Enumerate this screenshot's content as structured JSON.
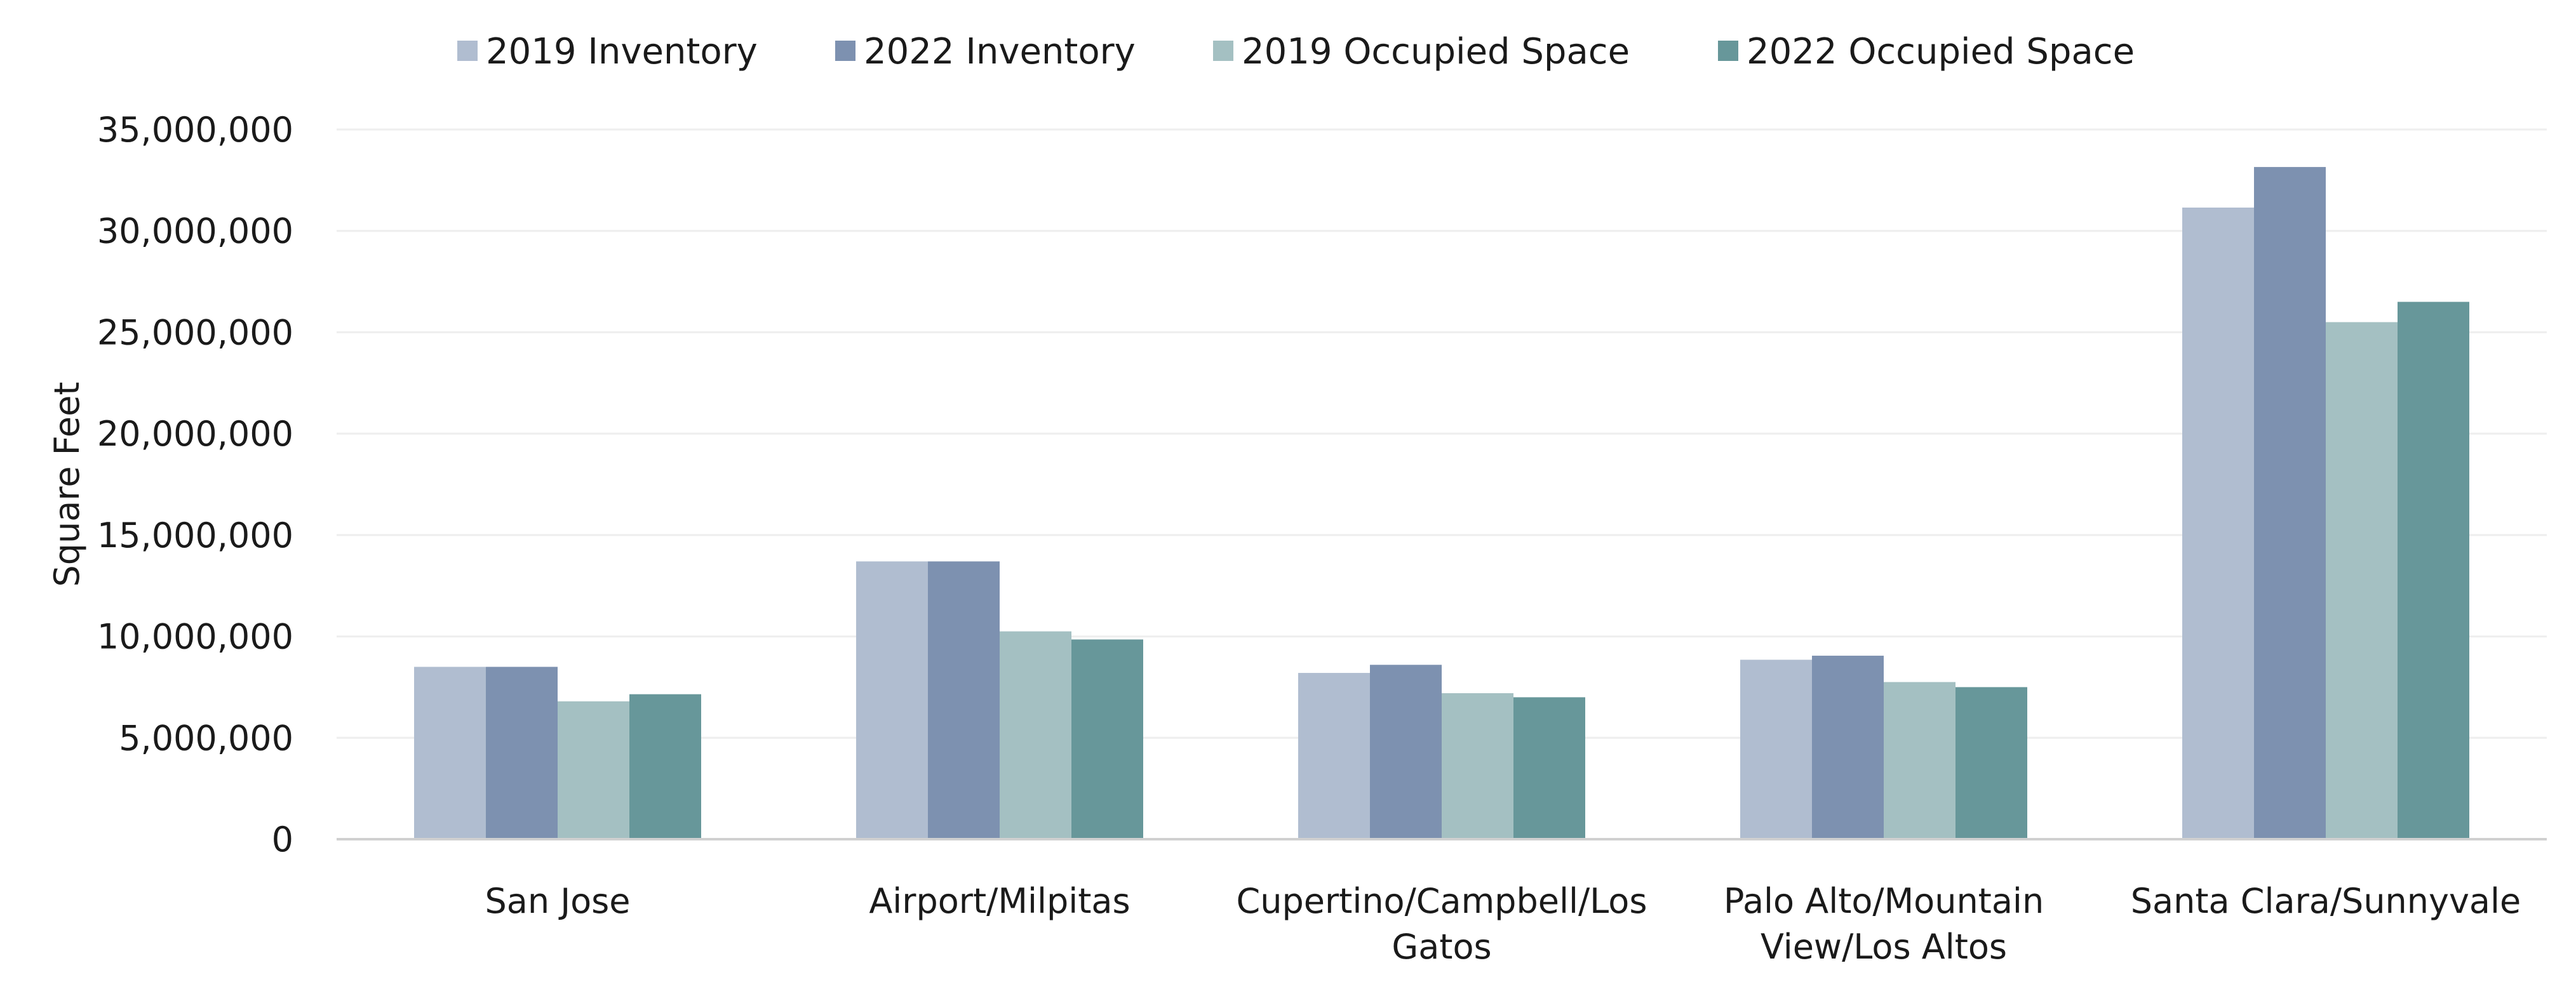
{
  "chart_data": {
    "type": "bar",
    "title": "",
    "xlabel": "",
    "ylabel": "Square Feet",
    "ylim": [
      0,
      35000000
    ],
    "yticks": [
      "0",
      "5,000,000",
      "10,000,000",
      "15,000,000",
      "20,000,000",
      "25,000,000",
      "30,000,000",
      "35,000,000"
    ],
    "ytick_values": [
      0,
      5000000,
      10000000,
      15000000,
      20000000,
      25000000,
      30000000,
      35000000
    ],
    "grid": true,
    "legend_position": "top",
    "categories": [
      [
        "San Jose"
      ],
      [
        "Airport/Milpitas"
      ],
      [
        "Cupertino/Campbell/Los",
        "Gatos"
      ],
      [
        "Palo Alto/Mountain",
        "View/Los Altos"
      ],
      [
        "Santa Clara/Sunnyvale"
      ]
    ],
    "series": [
      {
        "name": "2019 Inventory",
        "color": "#b0bdd0",
        "values": [
          8500000,
          13700000,
          8200000,
          8850000,
          31150000
        ]
      },
      {
        "name": "2022 Inventory",
        "color": "#7d91b0",
        "values": [
          8500000,
          13700000,
          8600000,
          9050000,
          33150000
        ]
      },
      {
        "name": "2019 Occupied Space",
        "color": "#a4c0c2",
        "values": [
          6800000,
          10250000,
          7200000,
          7750000,
          25500000
        ]
      },
      {
        "name": "2022 Occupied Space",
        "color": "#67979a",
        "values": [
          7150000,
          9850000,
          7000000,
          7500000,
          26500000
        ]
      }
    ]
  }
}
